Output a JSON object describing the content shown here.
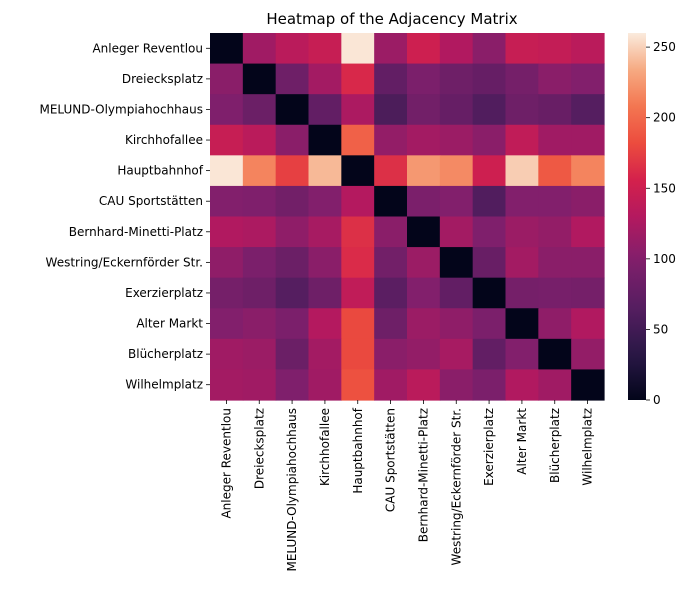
{
  "chart_data": {
    "type": "heatmap",
    "title": "Heatmap of the Adjacency Matrix",
    "xlabel": "",
    "ylabel": "",
    "rows": [
      "Anleger Reventlou",
      "Dreiecksplatz",
      "MELUND-Olympiahochhaus",
      "Kirchhofallee",
      "Hauptbahnhof",
      "CAU Sportstätten",
      "Bernhard-Minetti-Platz",
      "Westring/Eckernförder Str.",
      "Exerzierplatz",
      "Alter Markt",
      "Blücherplatz",
      "Wilhelmplatz"
    ],
    "columns": [
      "Anleger Reventlou",
      "Dreiecksplatz",
      "MELUND-Olympiahochhaus",
      "Kirchhofallee",
      "Hauptbahnhof",
      "CAU Sportstätten",
      "Bernhard-Minetti-Platz",
      "Westring/Eckernförder Str.",
      "Exerzierplatz",
      "Alter Markt",
      "Blücherplatz",
      "Wilhelmplatz"
    ],
    "values": [
      [
        0,
        118,
        135,
        145,
        258,
        115,
        150,
        128,
        105,
        145,
        142,
        135
      ],
      [
        105,
        0,
        85,
        120,
        160,
        75,
        95,
        85,
        78,
        90,
        105,
        100
      ],
      [
        98,
        82,
        0,
        75,
        125,
        58,
        88,
        78,
        62,
        85,
        80,
        65
      ],
      [
        145,
        135,
        105,
        0,
        195,
        110,
        120,
        115,
        105,
        140,
        118,
        118
      ],
      [
        258,
        215,
        175,
        240,
        0,
        165,
        225,
        218,
        150,
        248,
        190,
        215
      ],
      [
        100,
        98,
        88,
        100,
        130,
        0,
        95,
        100,
        62,
        100,
        100,
        105
      ],
      [
        128,
        125,
        108,
        122,
        165,
        105,
        0,
        120,
        98,
        115,
        110,
        128
      ],
      [
        108,
        95,
        82,
        105,
        162,
        88,
        115,
        0,
        80,
        120,
        105,
        105
      ],
      [
        90,
        85,
        65,
        85,
        140,
        70,
        100,
        75,
        0,
        90,
        92,
        90
      ],
      [
        100,
        105,
        95,
        130,
        180,
        85,
        115,
        108,
        95,
        0,
        108,
        128
      ],
      [
        118,
        115,
        82,
        120,
        180,
        105,
        110,
        122,
        75,
        100,
        0,
        110
      ],
      [
        120,
        118,
        98,
        118,
        185,
        118,
        135,
        105,
        95,
        128,
        118,
        0
      ]
    ],
    "colorbar": {
      "min": 0,
      "max": 260,
      "ticks": [
        0,
        50,
        100,
        150,
        200,
        250
      ],
      "colormap": "rocket"
    },
    "grid": false,
    "legend": "right"
  }
}
